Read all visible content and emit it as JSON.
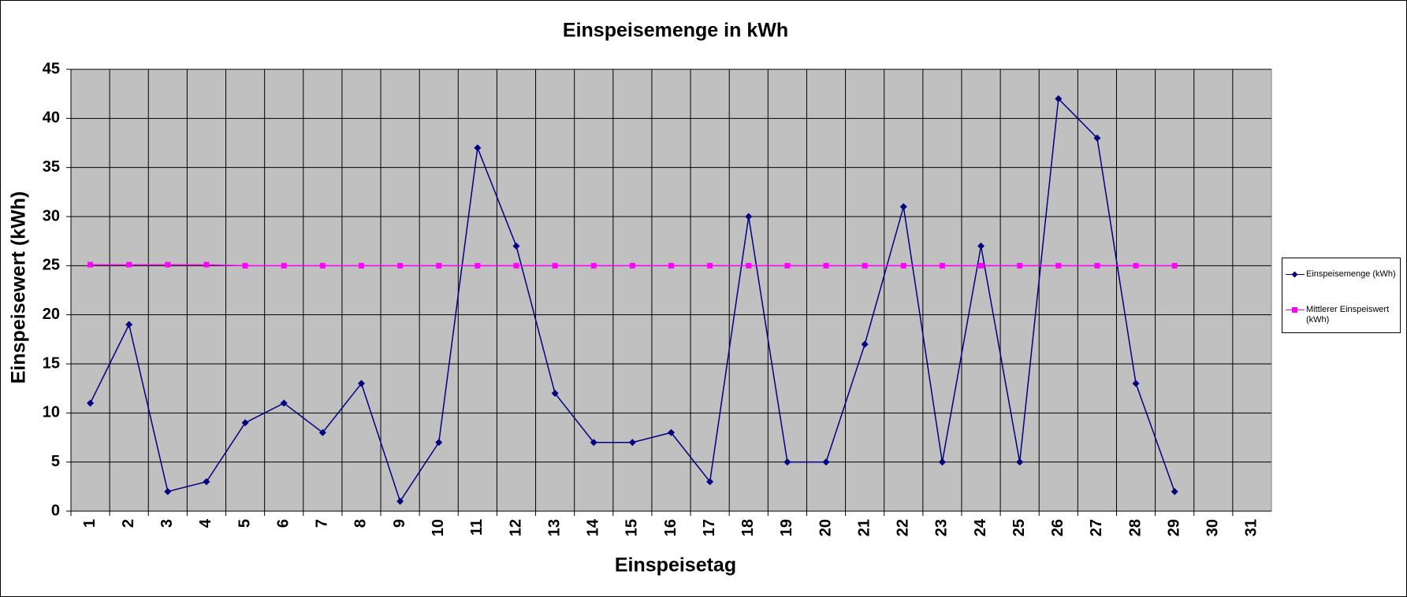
{
  "chart_data": {
    "type": "line",
    "title": "Einspeisemenge in kWh",
    "x_label": "Einspeisetag",
    "y_label": "Einspeisewert  (kWh)",
    "categories": [
      1,
      2,
      3,
      4,
      5,
      6,
      7,
      8,
      9,
      10,
      11,
      12,
      13,
      14,
      15,
      16,
      17,
      18,
      19,
      20,
      21,
      22,
      23,
      24,
      25,
      26,
      27,
      28,
      29,
      30,
      31
    ],
    "series": [
      {
        "name": "Einspeisemenge (kWh)",
        "color": "#000080",
        "marker": "diamond",
        "values": [
          11,
          19,
          2,
          3,
          9,
          11,
          8,
          13,
          1,
          7,
          37,
          27,
          12,
          7,
          7,
          8,
          3,
          30,
          5,
          5,
          17,
          31,
          5,
          27,
          5,
          42,
          38,
          13,
          2,
          null,
          null
        ]
      },
      {
        "name": "Mittlerer Einspeiswert (kWh)",
        "color": "#ff00ff",
        "marker": "square",
        "values": [
          25.1,
          25.1,
          25.1,
          25.1,
          25,
          25,
          25,
          25,
          25,
          25,
          25,
          25,
          25,
          25,
          25,
          25,
          25,
          25,
          25,
          25,
          25,
          25,
          25,
          25,
          25,
          25,
          25,
          25,
          25,
          null,
          null
        ]
      }
    ],
    "ylim": [
      0,
      45
    ],
    "yticks": [
      0,
      5,
      10,
      15,
      20,
      25,
      30,
      35,
      40,
      45
    ],
    "grid": true,
    "legend": "right"
  }
}
